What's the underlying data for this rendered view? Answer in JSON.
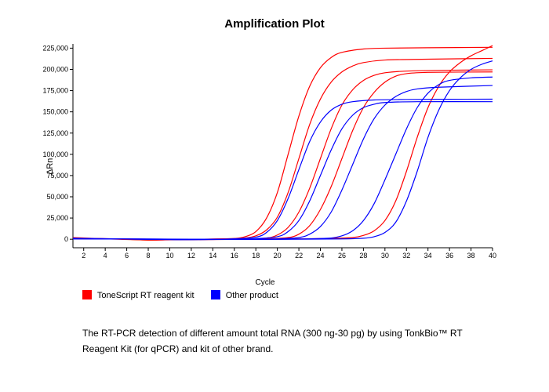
{
  "title": "Amplification Plot",
  "title_fontsize": 15,
  "ylabel": "ΔRn",
  "xlabel": "Cycle",
  "label_fontsize": 11,
  "tick_fontsize": 9,
  "xlim": [
    1,
    40
  ],
  "ylim": [
    -10000,
    230000
  ],
  "yticks": [
    0,
    25000,
    50000,
    75000,
    100000,
    125000,
    150000,
    175000,
    200000,
    225000
  ],
  "ytick_labels": [
    "0",
    "25,000",
    "50,000",
    "75,000",
    "100,000",
    "125,000",
    "150,000",
    "175,000",
    "200,000",
    "225,000"
  ],
  "xticks": [
    2,
    4,
    6,
    8,
    10,
    12,
    14,
    16,
    18,
    20,
    22,
    24,
    26,
    28,
    30,
    32,
    34,
    36,
    38,
    40
  ],
  "background_color": "#ffffff",
  "axis_color": "#000000",
  "line_width": 1.2,
  "series": [
    {
      "group": "a",
      "color": "#ff0000",
      "points": [
        [
          1,
          2000
        ],
        [
          3,
          1000
        ],
        [
          5,
          500
        ],
        [
          8,
          -1000
        ],
        [
          10,
          -500
        ],
        [
          12,
          0
        ],
        [
          14,
          200
        ],
        [
          16,
          900
        ],
        [
          17,
          3000
        ],
        [
          18,
          9000
        ],
        [
          19,
          25000
        ],
        [
          20,
          55000
        ],
        [
          21,
          100000
        ],
        [
          22,
          145000
        ],
        [
          23,
          180000
        ],
        [
          24,
          202000
        ],
        [
          25,
          214000
        ],
        [
          26,
          220000
        ],
        [
          28,
          224000
        ],
        [
          30,
          225000
        ],
        [
          34,
          225500
        ],
        [
          40,
          226000
        ]
      ]
    },
    {
      "group": "a",
      "color": "#ff0000",
      "points": [
        [
          1,
          1500
        ],
        [
          4,
          500
        ],
        [
          8,
          -800
        ],
        [
          12,
          -300
        ],
        [
          15,
          500
        ],
        [
          17,
          1500
        ],
        [
          18,
          4000
        ],
        [
          19,
          11000
        ],
        [
          20,
          26000
        ],
        [
          21,
          55000
        ],
        [
          22,
          95000
        ],
        [
          23,
          135000
        ],
        [
          24,
          165000
        ],
        [
          25,
          185000
        ],
        [
          26,
          197000
        ],
        [
          27,
          204000
        ],
        [
          28,
          208000
        ],
        [
          30,
          211000
        ],
        [
          34,
          212000
        ],
        [
          40,
          213000
        ]
      ]
    },
    {
      "group": "a",
      "color": "#ff0000",
      "points": [
        [
          1,
          1000
        ],
        [
          5,
          300
        ],
        [
          10,
          -600
        ],
        [
          14,
          -200
        ],
        [
          17,
          300
        ],
        [
          19,
          1500
        ],
        [
          20,
          5000
        ],
        [
          21,
          14000
        ],
        [
          22,
          32000
        ],
        [
          23,
          60000
        ],
        [
          24,
          95000
        ],
        [
          25,
          130000
        ],
        [
          26,
          158000
        ],
        [
          27,
          176000
        ],
        [
          28,
          187000
        ],
        [
          29,
          193000
        ],
        [
          30,
          196000
        ],
        [
          32,
          198000
        ],
        [
          36,
          199000
        ],
        [
          40,
          199500
        ]
      ]
    },
    {
      "group": "a",
      "color": "#ff0000",
      "points": [
        [
          1,
          800
        ],
        [
          6,
          200
        ],
        [
          12,
          -400
        ],
        [
          16,
          0
        ],
        [
          19,
          500
        ],
        [
          21,
          2000
        ],
        [
          22,
          6000
        ],
        [
          23,
          16000
        ],
        [
          24,
          35000
        ],
        [
          25,
          62000
        ],
        [
          26,
          95000
        ],
        [
          27,
          128000
        ],
        [
          28,
          155000
        ],
        [
          29,
          173000
        ],
        [
          30,
          185000
        ],
        [
          31,
          192000
        ],
        [
          32,
          195000
        ],
        [
          34,
          196500
        ],
        [
          40,
          197000
        ]
      ]
    },
    {
      "group": "a",
      "color": "#ff0000",
      "points": [
        [
          1,
          500
        ],
        [
          8,
          100
        ],
        [
          14,
          -300
        ],
        [
          18,
          0
        ],
        [
          22,
          400
        ],
        [
          25,
          1000
        ],
        [
          27,
          2000
        ],
        [
          28,
          4500
        ],
        [
          29,
          10000
        ],
        [
          30,
          22000
        ],
        [
          31,
          45000
        ],
        [
          32,
          80000
        ],
        [
          33,
          120000
        ],
        [
          34,
          155000
        ],
        [
          35,
          180000
        ],
        [
          36,
          197000
        ],
        [
          37,
          208000
        ],
        [
          38,
          216000
        ],
        [
          39,
          222000
        ],
        [
          40,
          228000
        ]
      ]
    },
    {
      "group": "b",
      "color": "#0000ff",
      "points": [
        [
          1,
          1200
        ],
        [
          5,
          400
        ],
        [
          10,
          -500
        ],
        [
          14,
          -100
        ],
        [
          16,
          500
        ],
        [
          18,
          2500
        ],
        [
          19,
          8000
        ],
        [
          20,
          22000
        ],
        [
          21,
          48000
        ],
        [
          22,
          82000
        ],
        [
          23,
          115000
        ],
        [
          24,
          138000
        ],
        [
          25,
          152000
        ],
        [
          26,
          159000
        ],
        [
          27,
          162000
        ],
        [
          29,
          164000
        ],
        [
          32,
          164500
        ],
        [
          36,
          164800
        ],
        [
          40,
          164900
        ]
      ]
    },
    {
      "group": "b",
      "color": "#0000ff",
      "points": [
        [
          1,
          900
        ],
        [
          6,
          300
        ],
        [
          12,
          -400
        ],
        [
          16,
          0
        ],
        [
          18,
          800
        ],
        [
          20,
          3000
        ],
        [
          21,
          9000
        ],
        [
          22,
          22000
        ],
        [
          23,
          45000
        ],
        [
          24,
          75000
        ],
        [
          25,
          105000
        ],
        [
          26,
          130000
        ],
        [
          27,
          146000
        ],
        [
          28,
          155000
        ],
        [
          29,
          159000
        ],
        [
          30,
          161000
        ],
        [
          33,
          162000
        ],
        [
          40,
          162000
        ]
      ]
    },
    {
      "group": "b",
      "color": "#0000ff",
      "points": [
        [
          1,
          700
        ],
        [
          8,
          200
        ],
        [
          14,
          -300
        ],
        [
          18,
          -100
        ],
        [
          20,
          500
        ],
        [
          22,
          2000
        ],
        [
          23,
          6000
        ],
        [
          24,
          15000
        ],
        [
          25,
          32000
        ],
        [
          26,
          58000
        ],
        [
          27,
          88000
        ],
        [
          28,
          118000
        ],
        [
          29,
          142000
        ],
        [
          30,
          158000
        ],
        [
          31,
          168000
        ],
        [
          32,
          174000
        ],
        [
          33,
          177000
        ],
        [
          35,
          179000
        ],
        [
          40,
          181000
        ]
      ]
    },
    {
      "group": "b",
      "color": "#0000ff",
      "points": [
        [
          1,
          500
        ],
        [
          10,
          100
        ],
        [
          16,
          -200
        ],
        [
          20,
          0
        ],
        [
          23,
          500
        ],
        [
          25,
          1500
        ],
        [
          26,
          4000
        ],
        [
          27,
          10000
        ],
        [
          28,
          22000
        ],
        [
          29,
          42000
        ],
        [
          30,
          70000
        ],
        [
          31,
          100000
        ],
        [
          32,
          130000
        ],
        [
          33,
          155000
        ],
        [
          34,
          172000
        ],
        [
          35,
          182000
        ],
        [
          36,
          187000
        ],
        [
          38,
          190000
        ],
        [
          40,
          191000
        ]
      ]
    },
    {
      "group": "b",
      "color": "#0000ff",
      "points": [
        [
          1,
          400
        ],
        [
          12,
          100
        ],
        [
          18,
          -200
        ],
        [
          22,
          0
        ],
        [
          26,
          400
        ],
        [
          28,
          1200
        ],
        [
          29,
          3000
        ],
        [
          30,
          8000
        ],
        [
          31,
          20000
        ],
        [
          32,
          45000
        ],
        [
          33,
          80000
        ],
        [
          34,
          120000
        ],
        [
          35,
          152000
        ],
        [
          36,
          175000
        ],
        [
          37,
          190000
        ],
        [
          38,
          200000
        ],
        [
          39,
          206000
        ],
        [
          40,
          210000
        ]
      ]
    }
  ],
  "legend": {
    "items": [
      {
        "swatch": "#ff0000",
        "label": "ToneScript RT reagent kit"
      },
      {
        "swatch": "#0000ff",
        "label": "Other product"
      }
    ]
  },
  "caption": "The RT-PCR detection of different amount total RNA (300 ng-30 pg) by using TonkBio™ RT Reagent Kit (for qPCR) and kit of other brand."
}
